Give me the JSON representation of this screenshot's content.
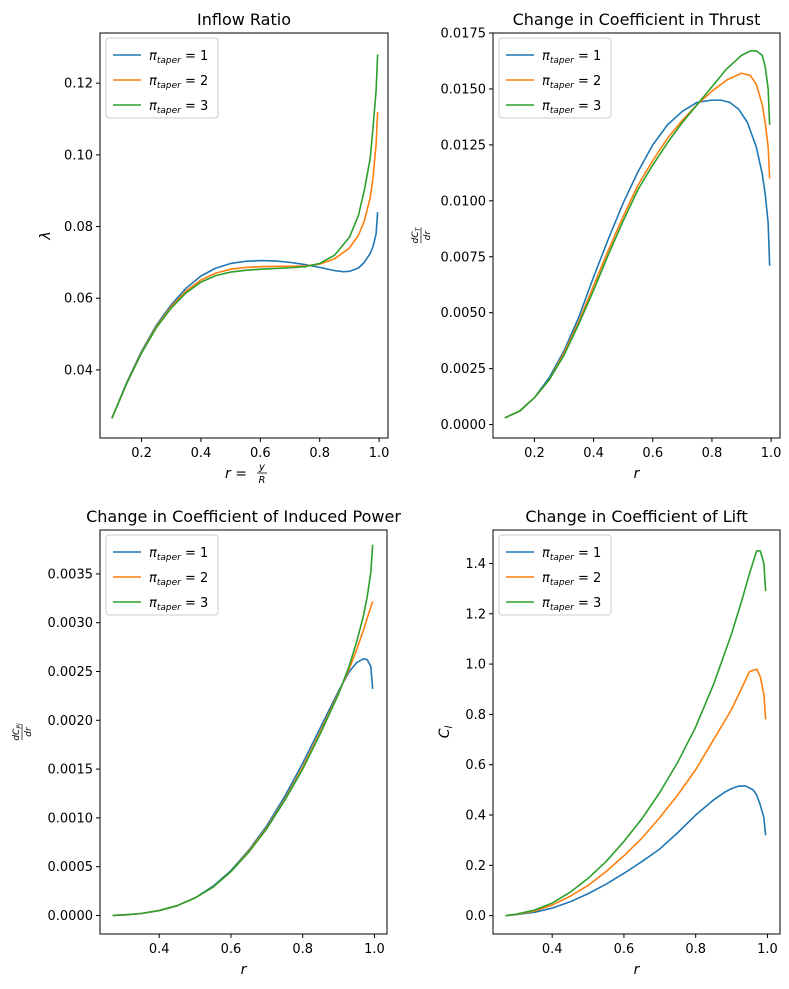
{
  "colors": {
    "series1": "#1f77b4",
    "series2": "#ff7f0e",
    "series3": "#2ca02c"
  },
  "legend_labels": [
    "π_taper = 1",
    "π_taper = 2",
    "π_taper = 3"
  ],
  "chart_data": [
    {
      "type": "line",
      "title": "Inflow Ratio",
      "xlabel": "r = y/R",
      "ylabel": "λ",
      "xlim": [
        0.06,
        1.03
      ],
      "ylim": [
        0.021,
        0.134
      ],
      "xticks": [
        0.2,
        0.4,
        0.6,
        0.8,
        1.0
      ],
      "xtick_labels": [
        "0.2",
        "0.4",
        "0.6",
        "0.8",
        "1.0"
      ],
      "yticks": [
        0.04,
        0.06,
        0.08,
        0.1,
        0.12
      ],
      "ytick_labels": [
        "0.04",
        "0.06",
        "0.08",
        "0.10",
        "0.12"
      ],
      "grid": false,
      "legend": "top-left",
      "series": [
        {
          "name": "π_taper = 1",
          "x": [
            0.1,
            0.15,
            0.2,
            0.25,
            0.3,
            0.35,
            0.4,
            0.45,
            0.5,
            0.55,
            0.6,
            0.65,
            0.7,
            0.75,
            0.8,
            0.85,
            0.88,
            0.9,
            0.93,
            0.95,
            0.97,
            0.98,
            0.99,
            0.995
          ],
          "y": [
            0.0265,
            0.0365,
            0.0452,
            0.0525,
            0.0582,
            0.0628,
            0.0662,
            0.0684,
            0.0697,
            0.0703,
            0.0705,
            0.0704,
            0.07,
            0.0694,
            0.0686,
            0.0677,
            0.0674,
            0.0675,
            0.0684,
            0.07,
            0.0725,
            0.0745,
            0.078,
            0.084
          ]
        },
        {
          "name": "π_taper = 2",
          "x": [
            0.1,
            0.15,
            0.2,
            0.25,
            0.3,
            0.35,
            0.4,
            0.45,
            0.5,
            0.55,
            0.6,
            0.65,
            0.7,
            0.75,
            0.8,
            0.85,
            0.9,
            0.93,
            0.95,
            0.97,
            0.98,
            0.99,
            0.995
          ],
          "y": [
            0.0265,
            0.0363,
            0.0449,
            0.0521,
            0.0577,
            0.062,
            0.0651,
            0.067,
            0.0681,
            0.0686,
            0.0688,
            0.0689,
            0.0689,
            0.069,
            0.0695,
            0.071,
            0.074,
            0.0775,
            0.0815,
            0.088,
            0.094,
            0.103,
            0.112
          ]
        },
        {
          "name": "π_taper = 3",
          "x": [
            0.1,
            0.15,
            0.2,
            0.25,
            0.3,
            0.35,
            0.4,
            0.45,
            0.5,
            0.55,
            0.6,
            0.65,
            0.7,
            0.75,
            0.8,
            0.85,
            0.9,
            0.93,
            0.95,
            0.97,
            0.98,
            0.99,
            0.995
          ],
          "y": [
            0.0265,
            0.0362,
            0.0447,
            0.0518,
            0.0573,
            0.0615,
            0.0645,
            0.0663,
            0.0673,
            0.0678,
            0.0681,
            0.0683,
            0.0685,
            0.0688,
            0.0697,
            0.072,
            0.077,
            0.083,
            0.09,
            0.099,
            0.108,
            0.118,
            0.128
          ]
        }
      ]
    },
    {
      "type": "line",
      "title": "Change in Coefficient in Thrust",
      "xlabel": "r",
      "ylabel": "dC_T/dr",
      "xlim": [
        0.06,
        1.03
      ],
      "ylim": [
        -0.0006,
        0.0175
      ],
      "xticks": [
        0.2,
        0.4,
        0.6,
        0.8,
        1.0
      ],
      "xtick_labels": [
        "0.2",
        "0.4",
        "0.6",
        "0.8",
        "1.0"
      ],
      "yticks": [
        0,
        0.0025,
        0.005,
        0.0075,
        0.01,
        0.0125,
        0.015,
        0.0175
      ],
      "ytick_labels": [
        "0.0000",
        "0.0025",
        "0.0050",
        "0.0075",
        "0.0100",
        "0.0125",
        "0.0150",
        "0.0175"
      ],
      "grid": false,
      "legend": "top-left",
      "series": [
        {
          "name": "π_taper = 1",
          "x": [
            0.1,
            0.15,
            0.2,
            0.25,
            0.3,
            0.35,
            0.4,
            0.45,
            0.5,
            0.55,
            0.6,
            0.65,
            0.7,
            0.75,
            0.8,
            0.83,
            0.86,
            0.89,
            0.92,
            0.95,
            0.97,
            0.98,
            0.99,
            0.995
          ],
          "y": [
            0.0003,
            0.0006,
            0.0012,
            0.0021,
            0.0033,
            0.0048,
            0.0066,
            0.0083,
            0.0099,
            0.0113,
            0.0125,
            0.0134,
            0.014,
            0.0144,
            0.0145,
            0.0145,
            0.0144,
            0.0141,
            0.0135,
            0.0124,
            0.0112,
            0.0103,
            0.009,
            0.0071
          ]
        },
        {
          "name": "π_taper = 2",
          "x": [
            0.1,
            0.15,
            0.2,
            0.25,
            0.3,
            0.35,
            0.4,
            0.45,
            0.5,
            0.55,
            0.6,
            0.65,
            0.7,
            0.75,
            0.8,
            0.85,
            0.9,
            0.93,
            0.95,
            0.97,
            0.98,
            0.99,
            0.995
          ],
          "y": [
            0.0003,
            0.0006,
            0.0012,
            0.002,
            0.0032,
            0.0046,
            0.0062,
            0.0078,
            0.0093,
            0.0107,
            0.0118,
            0.0128,
            0.0136,
            0.0143,
            0.0149,
            0.0154,
            0.0157,
            0.0156,
            0.0152,
            0.0143,
            0.0135,
            0.0124,
            0.011
          ]
        },
        {
          "name": "π_taper = 3",
          "x": [
            0.1,
            0.15,
            0.2,
            0.25,
            0.3,
            0.35,
            0.4,
            0.45,
            0.5,
            0.55,
            0.6,
            0.65,
            0.7,
            0.75,
            0.8,
            0.85,
            0.9,
            0.93,
            0.95,
            0.97,
            0.98,
            0.99,
            0.995
          ],
          "y": [
            0.0003,
            0.0006,
            0.0012,
            0.002,
            0.0031,
            0.0045,
            0.006,
            0.0076,
            0.0091,
            0.0105,
            0.0116,
            0.0126,
            0.0135,
            0.0143,
            0.0151,
            0.0159,
            0.0165,
            0.0167,
            0.0167,
            0.0165,
            0.016,
            0.015,
            0.0134
          ]
        }
      ]
    },
    {
      "type": "line",
      "title": "Change in Coefficient of Induced Power",
      "xlabel": "r",
      "ylabel": "dC_Pi/dr",
      "xlim": [
        0.235,
        1.035
      ],
      "ylim": [
        -0.00019,
        0.00395
      ],
      "xticks": [
        0.4,
        0.6,
        0.8,
        1.0
      ],
      "xtick_labels": [
        "0.4",
        "0.6",
        "0.8",
        "1.0"
      ],
      "yticks": [
        0,
        0.0005,
        0.001,
        0.0015,
        0.002,
        0.0025,
        0.003,
        0.0035
      ],
      "ytick_labels": [
        "0.0000",
        "0.0005",
        "0.0010",
        "0.0015",
        "0.0020",
        "0.0025",
        "0.0030",
        "0.0035"
      ],
      "grid": false,
      "legend": "top-left",
      "series": [
        {
          "name": "π_taper = 1",
          "x": [
            0.27,
            0.3,
            0.35,
            0.4,
            0.45,
            0.5,
            0.55,
            0.6,
            0.65,
            0.7,
            0.75,
            0.8,
            0.85,
            0.9,
            0.93,
            0.95,
            0.97,
            0.98,
            0.99,
            0.995
          ],
          "y": [
            0,
            5e-06,
            2e-05,
            5e-05,
            0.0001,
            0.00018,
            0.0003,
            0.00046,
            0.00067,
            0.00092,
            0.00122,
            0.00156,
            0.00193,
            0.0023,
            0.0025,
            0.00259,
            0.00263,
            0.00262,
            0.00255,
            0.00232
          ]
        },
        {
          "name": "π_taper = 2",
          "x": [
            0.27,
            0.3,
            0.35,
            0.4,
            0.45,
            0.5,
            0.55,
            0.6,
            0.65,
            0.7,
            0.75,
            0.8,
            0.85,
            0.9,
            0.93,
            0.95,
            0.97,
            0.98,
            0.99,
            0.995
          ],
          "y": [
            0,
            5e-06,
            2e-05,
            5e-05,
            0.0001,
            0.00018,
            0.00029,
            0.00045,
            0.00066,
            0.0009,
            0.00119,
            0.00152,
            0.00189,
            0.00228,
            0.00253,
            0.00272,
            0.00293,
            0.00305,
            0.00316,
            0.00322
          ]
        },
        {
          "name": "π_taper = 3",
          "x": [
            0.27,
            0.3,
            0.35,
            0.4,
            0.45,
            0.5,
            0.55,
            0.6,
            0.65,
            0.7,
            0.75,
            0.8,
            0.85,
            0.9,
            0.93,
            0.95,
            0.97,
            0.98,
            0.99,
            0.995
          ],
          "y": [
            0,
            5e-06,
            2e-05,
            5e-05,
            0.0001,
            0.00018,
            0.00029,
            0.00045,
            0.00065,
            0.00089,
            0.00118,
            0.0015,
            0.00187,
            0.00227,
            0.00256,
            0.0028,
            0.00308,
            0.00327,
            0.00352,
            0.0038
          ]
        }
      ]
    },
    {
      "type": "line",
      "title": "Change in Coefficient of Lift",
      "xlabel": "r",
      "ylabel": "C_l",
      "xlim": [
        0.235,
        1.035
      ],
      "ylim": [
        -0.073,
        1.533
      ],
      "xticks": [
        0.4,
        0.6,
        0.8,
        1.0
      ],
      "xtick_labels": [
        "0.4",
        "0.6",
        "0.8",
        "1.0"
      ],
      "yticks": [
        0,
        0.2,
        0.4,
        0.6,
        0.8,
        1.0,
        1.2,
        1.4
      ],
      "ytick_labels": [
        "0.0",
        "0.2",
        "0.4",
        "0.6",
        "0.8",
        "1.0",
        "1.2",
        "1.4"
      ],
      "grid": false,
      "legend": "top-left",
      "series": [
        {
          "name": "π_taper = 1",
          "x": [
            0.27,
            0.3,
            0.35,
            0.4,
            0.45,
            0.5,
            0.55,
            0.6,
            0.65,
            0.7,
            0.75,
            0.8,
            0.85,
            0.88,
            0.9,
            0.92,
            0.94,
            0.96,
            0.97,
            0.98,
            0.99,
            0.995
          ],
          "y": [
            0,
            0.004,
            0.013,
            0.03,
            0.055,
            0.087,
            0.125,
            0.168,
            0.215,
            0.265,
            0.33,
            0.4,
            0.46,
            0.49,
            0.505,
            0.515,
            0.515,
            0.5,
            0.48,
            0.44,
            0.39,
            0.32
          ]
        },
        {
          "name": "π_taper = 2",
          "x": [
            0.27,
            0.3,
            0.35,
            0.4,
            0.45,
            0.5,
            0.55,
            0.6,
            0.65,
            0.7,
            0.75,
            0.8,
            0.85,
            0.9,
            0.93,
            0.95,
            0.97,
            0.98,
            0.99,
            0.995
          ],
          "y": [
            0,
            0.005,
            0.018,
            0.042,
            0.077,
            0.12,
            0.175,
            0.238,
            0.308,
            0.39,
            0.48,
            0.58,
            0.7,
            0.82,
            0.91,
            0.97,
            0.98,
            0.95,
            0.88,
            0.78
          ]
        },
        {
          "name": "π_taper = 3",
          "x": [
            0.27,
            0.3,
            0.35,
            0.4,
            0.45,
            0.5,
            0.55,
            0.6,
            0.65,
            0.7,
            0.75,
            0.8,
            0.85,
            0.9,
            0.93,
            0.95,
            0.97,
            0.98,
            0.99,
            0.995
          ],
          "y": [
            0,
            0.006,
            0.022,
            0.05,
            0.093,
            0.148,
            0.215,
            0.295,
            0.385,
            0.49,
            0.61,
            0.75,
            0.92,
            1.12,
            1.26,
            1.36,
            1.45,
            1.45,
            1.4,
            1.29
          ]
        }
      ]
    }
  ]
}
